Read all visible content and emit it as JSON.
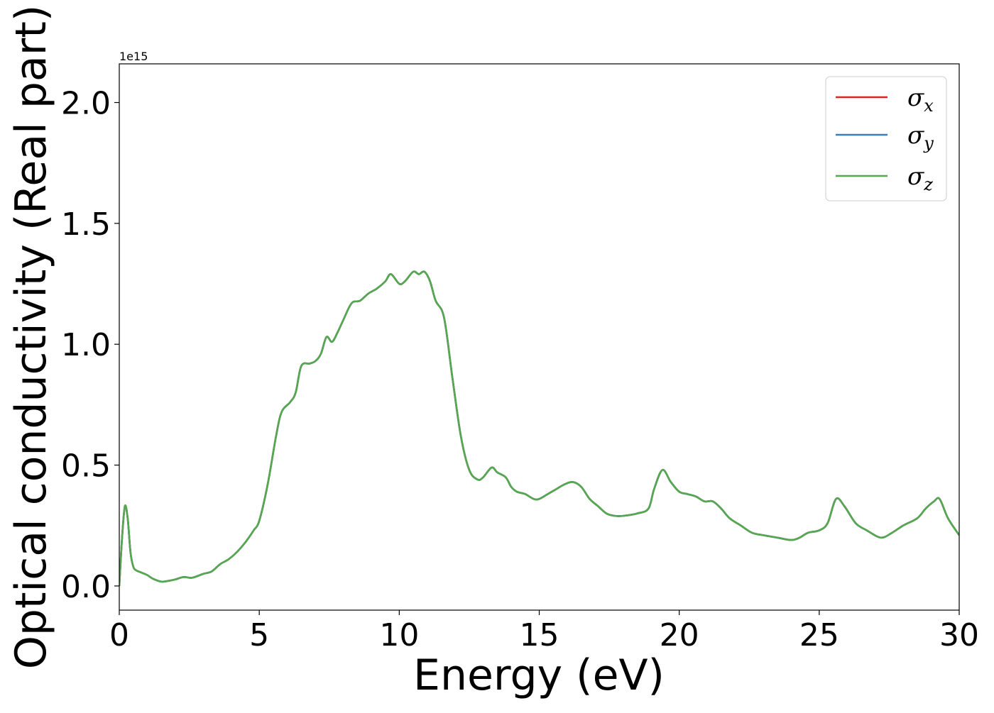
{
  "chart_data": {
    "type": "line",
    "xlabel": "Energy (eV)",
    "ylabel": "Optical conductivity (Real part)",
    "offset_text": "1e15",
    "xlim": [
      0,
      30
    ],
    "ylim": [
      -0.1,
      2.16
    ],
    "y_scale_factor": 1000000000000000.0,
    "xticks": [
      {
        "value": 0,
        "label": "0"
      },
      {
        "value": 5,
        "label": "5"
      },
      {
        "value": 10,
        "label": "10"
      },
      {
        "value": 15,
        "label": "15"
      },
      {
        "value": 20,
        "label": "20"
      },
      {
        "value": 25,
        "label": "25"
      },
      {
        "value": 30,
        "label": "30"
      }
    ],
    "yticks": [
      {
        "value": 0.0,
        "label": "0.0"
      },
      {
        "value": 0.5,
        "label": "0.5"
      },
      {
        "value": 1.0,
        "label": "1.0"
      },
      {
        "value": 1.5,
        "label": "1.5"
      },
      {
        "value": 2.0,
        "label": "2.0"
      }
    ],
    "grid": false,
    "legend_position": "top-right",
    "series": [
      {
        "symbol": "σ",
        "subscript": "x",
        "color": "#d62728"
      },
      {
        "symbol": "σ",
        "subscript": "y",
        "color": "#3a7fb8"
      },
      {
        "symbol": "σ",
        "subscript": "z",
        "color": "#55a84f"
      }
    ],
    "x": [
      0.0,
      0.1,
      0.2,
      0.3,
      0.4,
      0.5,
      0.6,
      0.8,
      1.0,
      1.2,
      1.5,
      1.8,
      2.0,
      2.3,
      2.6,
      3.0,
      3.3,
      3.6,
      3.9,
      4.2,
      4.5,
      4.8,
      5.0,
      5.3,
      5.6,
      5.8,
      6.1,
      6.3,
      6.5,
      6.8,
      7.0,
      7.2,
      7.4,
      7.6,
      7.8,
      8.0,
      8.3,
      8.6,
      8.9,
      9.2,
      9.5,
      9.7,
      10.0,
      10.2,
      10.5,
      10.7,
      10.9,
      11.1,
      11.3,
      11.6,
      11.9,
      12.2,
      12.5,
      12.8,
      13.0,
      13.3,
      13.5,
      13.8,
      14.0,
      14.2,
      14.5,
      14.8,
      15.0,
      15.3,
      15.6,
      15.9,
      16.2,
      16.5,
      16.8,
      17.1,
      17.4,
      17.7,
      18.0,
      18.5,
      18.9,
      19.1,
      19.4,
      19.7,
      20.0,
      20.3,
      20.6,
      20.9,
      21.2,
      21.5,
      21.8,
      22.2,
      22.6,
      23.0,
      23.5,
      24.0,
      24.3,
      24.6,
      25.0,
      25.3,
      25.6,
      25.9,
      26.3,
      26.7,
      27.2,
      27.6,
      28.0,
      28.5,
      28.8,
      29.1,
      29.3,
      29.6,
      30.0
    ],
    "values": [
      0.0,
      0.2,
      0.33,
      0.28,
      0.14,
      0.08,
      0.065,
      0.055,
      0.045,
      0.03,
      0.018,
      0.022,
      0.027,
      0.037,
      0.034,
      0.05,
      0.06,
      0.09,
      0.11,
      0.14,
      0.18,
      0.23,
      0.27,
      0.42,
      0.62,
      0.72,
      0.76,
      0.8,
      0.91,
      0.92,
      0.93,
      0.96,
      1.03,
      1.01,
      1.05,
      1.1,
      1.17,
      1.18,
      1.21,
      1.23,
      1.26,
      1.29,
      1.25,
      1.26,
      1.3,
      1.29,
      1.3,
      1.26,
      1.18,
      1.11,
      0.86,
      0.62,
      0.48,
      0.44,
      0.45,
      0.49,
      0.47,
      0.45,
      0.41,
      0.39,
      0.38,
      0.36,
      0.36,
      0.38,
      0.4,
      0.42,
      0.43,
      0.41,
      0.36,
      0.33,
      0.3,
      0.29,
      0.29,
      0.3,
      0.32,
      0.4,
      0.48,
      0.43,
      0.39,
      0.38,
      0.37,
      0.35,
      0.35,
      0.32,
      0.28,
      0.25,
      0.22,
      0.21,
      0.2,
      0.19,
      0.2,
      0.22,
      0.23,
      0.26,
      0.36,
      0.33,
      0.26,
      0.23,
      0.2,
      0.22,
      0.25,
      0.28,
      0.32,
      0.35,
      0.36,
      0.28,
      0.21
    ]
  }
}
